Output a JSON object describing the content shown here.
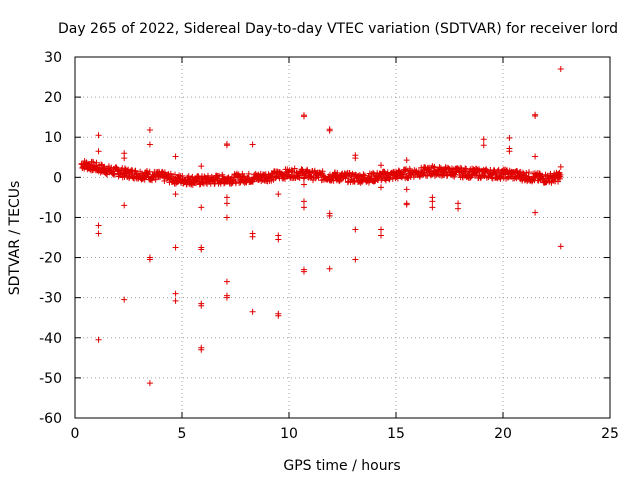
{
  "chart_data": {
    "type": "scatter",
    "title": "Day 265 of 2022, Sidereal Day-to-day VTEC variation (SDTVAR) for receiver lord",
    "xlabel": "GPS time / hours",
    "ylabel": "SDTVAR / TECUs",
    "xlim": [
      0,
      25
    ],
    "ylim": [
      -60,
      30
    ],
    "xticks": [
      0,
      5,
      10,
      15,
      20,
      25
    ],
    "yticks": [
      -60,
      -50,
      -40,
      -30,
      -20,
      -10,
      0,
      10,
      20,
      30
    ],
    "grid": true,
    "marker": "+",
    "series_color": "#e00000",
    "series": [
      {
        "name": "SDTVAR",
        "baseline": [
          [
            0.3,
            3.3
          ],
          [
            0.6,
            3.0
          ],
          [
            0.9,
            2.6
          ],
          [
            1.2,
            2.2
          ],
          [
            1.5,
            1.8
          ],
          [
            1.8,
            1.5
          ],
          [
            2.1,
            1.3
          ],
          [
            2.4,
            1.0
          ],
          [
            2.7,
            0.9
          ],
          [
            3.0,
            0.7
          ],
          [
            3.3,
            0.6
          ],
          [
            3.6,
            0.4
          ],
          [
            3.9,
            0.3
          ],
          [
            4.2,
            0.1
          ],
          [
            4.5,
            -0.3
          ],
          [
            4.8,
            -0.5
          ],
          [
            5.1,
            -0.6
          ],
          [
            5.4,
            -0.7
          ],
          [
            5.7,
            -0.8
          ],
          [
            6.0,
            -0.8
          ],
          [
            6.3,
            -0.7
          ],
          [
            6.6,
            -0.6
          ],
          [
            6.9,
            -0.5
          ],
          [
            7.2,
            -0.4
          ],
          [
            7.5,
            -0.3
          ],
          [
            7.8,
            -0.2
          ],
          [
            8.1,
            -0.2
          ],
          [
            8.4,
            -0.1
          ],
          [
            8.7,
            0.0
          ],
          [
            9.0,
            0.2
          ],
          [
            9.3,
            0.4
          ],
          [
            9.6,
            0.6
          ],
          [
            9.9,
            0.9
          ],
          [
            10.2,
            1.0
          ],
          [
            10.5,
            1.0
          ],
          [
            10.8,
            0.8
          ],
          [
            11.1,
            0.5
          ],
          [
            11.4,
            0.4
          ],
          [
            11.7,
            0.3
          ],
          [
            12.0,
            0.2
          ],
          [
            12.3,
            0.1
          ],
          [
            12.6,
            0.0
          ],
          [
            12.9,
            -0.1
          ],
          [
            13.2,
            -0.2
          ],
          [
            13.5,
            -0.2
          ],
          [
            13.8,
            -0.1
          ],
          [
            14.1,
            0.1
          ],
          [
            14.4,
            0.3
          ],
          [
            14.7,
            0.4
          ],
          [
            15.0,
            0.6
          ],
          [
            15.3,
            0.8
          ],
          [
            15.6,
            1.0
          ],
          [
            15.9,
            1.2
          ],
          [
            16.2,
            1.3
          ],
          [
            16.5,
            1.4
          ],
          [
            16.8,
            1.5
          ],
          [
            17.1,
            1.5
          ],
          [
            17.4,
            1.4
          ],
          [
            17.7,
            1.3
          ],
          [
            18.0,
            1.2
          ],
          [
            18.3,
            1.1
          ],
          [
            18.6,
            1.0
          ],
          [
            18.9,
            1.0
          ],
          [
            19.2,
            0.9
          ],
          [
            19.5,
            0.9
          ],
          [
            19.8,
            0.8
          ],
          [
            20.1,
            0.8
          ],
          [
            20.4,
            0.7
          ],
          [
            20.7,
            0.5
          ],
          [
            21.0,
            0.3
          ],
          [
            21.3,
            0.1
          ],
          [
            21.6,
            -0.1
          ],
          [
            21.9,
            -0.3
          ],
          [
            22.2,
            -0.2
          ],
          [
            22.5,
            0.0
          ],
          [
            22.7,
            0.3
          ]
        ],
        "outliers": [
          [
            1.1,
            10.5
          ],
          [
            1.1,
            6.5
          ],
          [
            1.1,
            -12
          ],
          [
            1.1,
            -14
          ],
          [
            1.1,
            -40.5
          ],
          [
            2.3,
            6.0
          ],
          [
            2.3,
            4.8
          ],
          [
            2.3,
            -7
          ],
          [
            2.3,
            -30.5
          ],
          [
            3.5,
            11.8
          ],
          [
            3.5,
            8.2
          ],
          [
            3.5,
            -20
          ],
          [
            3.5,
            -20.5
          ],
          [
            3.5,
            -51.3
          ],
          [
            4.7,
            5.2
          ],
          [
            4.7,
            -4.2
          ],
          [
            4.7,
            -17.5
          ],
          [
            4.7,
            -29
          ],
          [
            4.7,
            -30.8
          ],
          [
            5.9,
            2.8
          ],
          [
            5.9,
            -7.5
          ],
          [
            5.9,
            -17.5
          ],
          [
            5.9,
            -18
          ],
          [
            5.9,
            -31.5
          ],
          [
            5.9,
            -32
          ],
          [
            5.9,
            -42.5
          ],
          [
            5.9,
            -43
          ],
          [
            7.1,
            8.3
          ],
          [
            7.1,
            8.0
          ],
          [
            7.1,
            -5
          ],
          [
            7.1,
            -6.5
          ],
          [
            7.1,
            -10
          ],
          [
            7.1,
            -26
          ],
          [
            7.1,
            -29.5
          ],
          [
            7.1,
            -30
          ],
          [
            8.3,
            8.2
          ],
          [
            8.3,
            -14
          ],
          [
            8.3,
            -14.8
          ],
          [
            8.3,
            -33.5
          ],
          [
            9.5,
            -4.2
          ],
          [
            9.5,
            -14.5
          ],
          [
            9.5,
            -15.5
          ],
          [
            9.5,
            -34
          ],
          [
            9.5,
            -34.5
          ],
          [
            10.7,
            15.5
          ],
          [
            10.7,
            15.2
          ],
          [
            10.7,
            -1.8
          ],
          [
            10.7,
            -6
          ],
          [
            10.7,
            -7.5
          ],
          [
            10.7,
            -23
          ],
          [
            10.7,
            -23.5
          ],
          [
            11.9,
            12
          ],
          [
            11.9,
            11.6
          ],
          [
            11.9,
            -9
          ],
          [
            11.9,
            -9.6
          ],
          [
            11.9,
            -22.8
          ],
          [
            13.1,
            5.5
          ],
          [
            13.1,
            4.8
          ],
          [
            13.1,
            -13
          ],
          [
            13.1,
            -20.5
          ],
          [
            14.3,
            3
          ],
          [
            14.3,
            -2.5
          ],
          [
            14.3,
            -13
          ],
          [
            14.3,
            -14.5
          ],
          [
            15.5,
            4.3
          ],
          [
            15.5,
            -3
          ],
          [
            15.5,
            -6.5
          ],
          [
            15.5,
            -6.8
          ],
          [
            16.7,
            2.8
          ],
          [
            16.7,
            -5
          ],
          [
            16.7,
            -6
          ],
          [
            16.7,
            -7.5
          ],
          [
            17.9,
            -6.5
          ],
          [
            17.9,
            -7.8
          ],
          [
            19.1,
            9.5
          ],
          [
            19.1,
            8
          ],
          [
            20.3,
            9.8
          ],
          [
            20.3,
            7.2
          ],
          [
            20.3,
            6.5
          ],
          [
            21.5,
            15.6
          ],
          [
            21.5,
            15.3
          ],
          [
            21.5,
            5.2
          ],
          [
            21.5,
            -8.8
          ],
          [
            22.7,
            27
          ],
          [
            22.7,
            2.6
          ],
          [
            22.7,
            -17.2
          ]
        ]
      }
    ]
  }
}
